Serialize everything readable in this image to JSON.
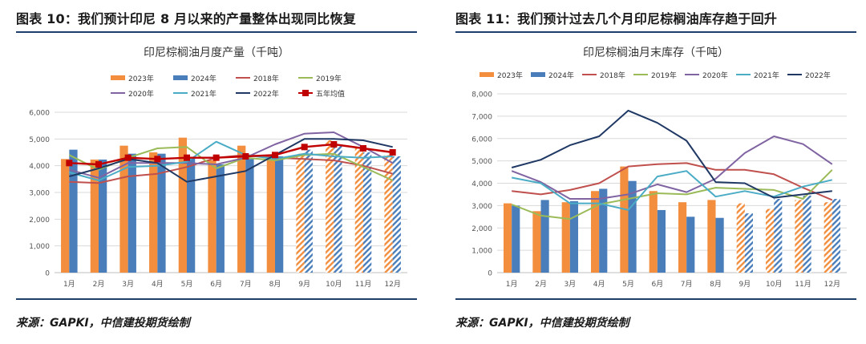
{
  "figures": [
    {
      "heading": "图表 10：我们预计印尼 8 月以来的产量整体出现同比恢复",
      "source": "来源：GAPKI，中信建投期货绘制"
    },
    {
      "heading": "图表 11：我们预计过去几个月印尼棕榈油库存趋于回升",
      "source": "来源：GAPKI，中信建投期货绘制"
    }
  ],
  "colors": {
    "2023年": "#f28e3d",
    "2024年": "#4a7ebb",
    "2018年": "#c0504d",
    "2019年": "#9bbb59",
    "2020年": "#8064a2",
    "2021年": "#4bacc6",
    "2022年": "#1f3864",
    "五年均值": "#c00000",
    "frame": "#1f3f6b"
  },
  "chart_data": [
    {
      "type": "bar",
      "title": "印尼棕榈油月度产量（千吨）",
      "categories": [
        "1月",
        "2月",
        "3月",
        "4月",
        "5月",
        "6月",
        "7月",
        "8月",
        "9月",
        "10月",
        "11月",
        "12月"
      ],
      "ylim": [
        0,
        6000
      ],
      "yticks": [
        "0",
        "1,000",
        "2,000",
        "3,000",
        "4,000",
        "5,000",
        "6,000"
      ],
      "grid": true,
      "legend_position": "top",
      "forecast_bars_from_index": 8,
      "bar_series": [
        {
          "name": "2023年",
          "values": [
            4250,
            4230,
            4750,
            4500,
            5050,
            4200,
            4750,
            4400,
            4450,
            4950,
            4650,
            4400
          ]
        },
        {
          "name": "2024年",
          "values": [
            4600,
            4230,
            4450,
            4450,
            4300,
            4050,
            4250,
            4350,
            4600,
            4800,
            4500,
            4350
          ]
        }
      ],
      "line_series": [
        {
          "name": "2018年",
          "values": [
            3400,
            3350,
            3600,
            3700,
            3950,
            4300,
            4400,
            4300,
            4250,
            4200,
            4000,
            3700
          ]
        },
        {
          "name": "2019年",
          "values": [
            4400,
            3850,
            4300,
            4650,
            4700,
            3900,
            4300,
            4200,
            4400,
            4450,
            3950,
            3450
          ]
        },
        {
          "name": "2020年",
          "values": [
            3850,
            3550,
            4100,
            4100,
            4100,
            4050,
            4300,
            4800,
            5200,
            5250,
            4700,
            4100
          ]
        },
        {
          "name": "2021年",
          "values": [
            3750,
            3450,
            3950,
            4000,
            4150,
            4900,
            4400,
            4250,
            4450,
            4350,
            4300,
            4350
          ]
        },
        {
          "name": "2022年",
          "values": [
            3600,
            3900,
            4250,
            4100,
            3400,
            3600,
            3800,
            4400,
            5000,
            5000,
            4950,
            4700
          ]
        },
        {
          "name": "五年均值",
          "values": [
            4100,
            4050,
            4300,
            4250,
            4300,
            4300,
            4350,
            4400,
            4700,
            4800,
            4650,
            4500
          ],
          "marker": "square"
        }
      ]
    },
    {
      "type": "bar",
      "title": "印尼棕榈油月末库存（千吨）",
      "categories": [
        "1月",
        "2月",
        "3月",
        "4月",
        "5月",
        "6月",
        "7月",
        "8月",
        "9月",
        "10月",
        "11月",
        "12月"
      ],
      "ylim": [
        0,
        8000
      ],
      "yticks": [
        "0",
        "1,000",
        "2,000",
        "3,000",
        "4,000",
        "5,000",
        "6,000",
        "7,000",
        "8,000"
      ],
      "grid": true,
      "legend_position": "top",
      "forecast_bars_from_index": 8,
      "bar_series": [
        {
          "name": "2023年",
          "values": [
            3100,
            2750,
            3150,
            3650,
            4750,
            3650,
            3150,
            3250,
            3100,
            2850,
            3250,
            3150
          ]
        },
        {
          "name": "2024年",
          "values": [
            3000,
            3250,
            3200,
            3750,
            4100,
            2800,
            2500,
            2450,
            2650,
            3300,
            3450,
            3300
          ]
        }
      ],
      "line_series": [
        {
          "name": "2018年",
          "values": [
            3650,
            3500,
            3700,
            4000,
            4750,
            4850,
            4900,
            4600,
            4600,
            4400,
            3800,
            3250
          ]
        },
        {
          "name": "2019年",
          "values": [
            3050,
            2550,
            2400,
            3050,
            3300,
            3550,
            3500,
            3800,
            3750,
            3700,
            3300,
            4600
          ]
        },
        {
          "name": "2020年",
          "values": [
            4550,
            4050,
            3300,
            3300,
            3500,
            3950,
            3600,
            4200,
            5350,
            6100,
            5750,
            4850
          ]
        },
        {
          "name": "2021年",
          "values": [
            4250,
            4000,
            3100,
            3100,
            2800,
            4300,
            4550,
            3400,
            3650,
            3400,
            3850,
            4150
          ]
        },
        {
          "name": "2022年",
          "values": [
            4700,
            5050,
            5700,
            6100,
            7250,
            6700,
            5900,
            4050,
            4000,
            3350,
            3500,
            3650
          ]
        }
      ]
    }
  ]
}
